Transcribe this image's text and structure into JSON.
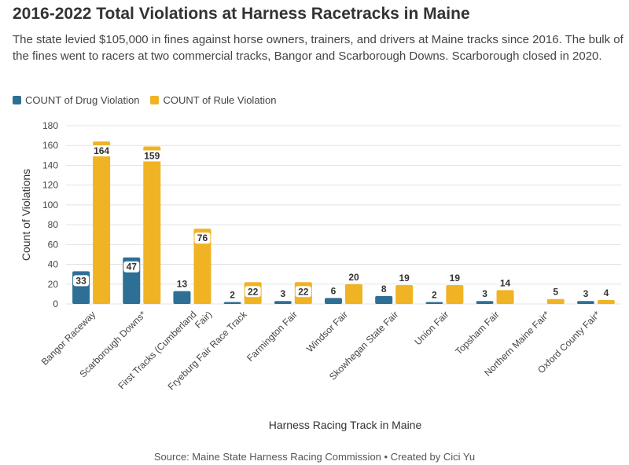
{
  "title": "2016-2022 Total Violations at Harness Racetracks in Maine",
  "subtitle": "The state levied $105,000 in fines against horse owners, trainers, and drivers at Maine tracks since 2016. The bulk of the fines went to racers at two commercial tracks, Bangor and Scarborough Downs. Scarborough closed in 2020.",
  "footer": "Source: Maine State Harness Racing Commission • Created by Cici Yu",
  "colors": {
    "drug": "#2e6f95",
    "rule": "#f0b323"
  },
  "chart_data": {
    "type": "bar",
    "categories": [
      "Bangor Raceway",
      "Scarborough Downs*",
      "First Tracks (Cumberland Fair)",
      "Fryeburg Fair Race Track",
      "Farmington Fair",
      "Windsor Fair",
      "Skowhegan State Fair",
      "Union Fair",
      "Topsham Fair",
      "Northern Maine Fair*",
      "Oxford County Fair*"
    ],
    "series": [
      {
        "name": "COUNT of Drug Violation",
        "values": [
          33,
          47,
          13,
          2,
          3,
          6,
          8,
          2,
          3,
          null,
          3
        ]
      },
      {
        "name": "COUNT of Rule Violation",
        "values": [
          164,
          159,
          76,
          22,
          22,
          20,
          19,
          19,
          14,
          5,
          4
        ]
      }
    ],
    "xlabel": "Harness Racing Track in Maine",
    "ylabel": "Count of Violations",
    "ylim": [
      0,
      180
    ],
    "yticks": [
      0,
      20,
      40,
      60,
      80,
      100,
      120,
      140,
      160,
      180
    ],
    "grid": true,
    "legend": "top-left"
  }
}
